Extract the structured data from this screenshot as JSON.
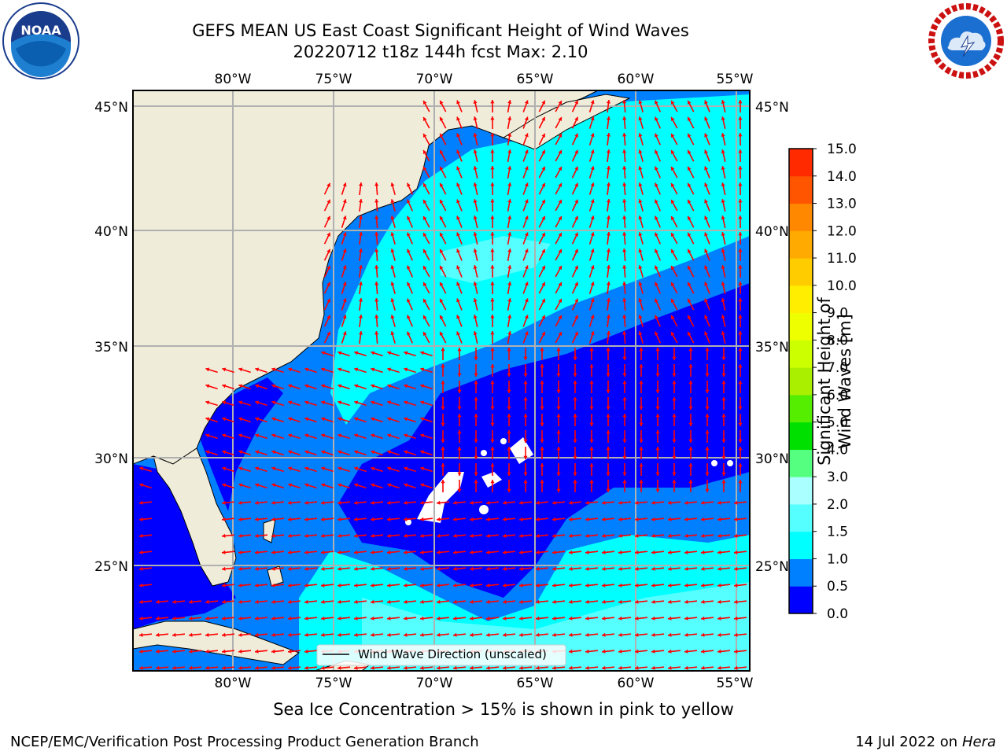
{
  "title": {
    "line1": "GEFS MEAN US East Coast Significant Height of Wind Waves",
    "line2": "20220712 t18z 144h fcst   Max: 2.10"
  },
  "logos": {
    "left": {
      "text": "NOAA",
      "ring_text": "NATIONAL OCEANIC AND ATMOSPHERIC ADMINISTRATION · U.S. DEPARTMENT OF COMMERCE",
      "icon": "noaa-logo"
    },
    "right": {
      "ring_text": "NATIONAL WEATHER SERVICE",
      "icon": "nws-logo"
    }
  },
  "map": {
    "longitude_ticks": [
      "80°W",
      "75°W",
      "70°W",
      "65°W",
      "60°W",
      "55°W"
    ],
    "latitude_ticks": [
      "45°N",
      "40°N",
      "35°N",
      "30°N",
      "25°N"
    ],
    "legend_label": "Wind Wave Direction (unscaled)",
    "land_color": "#efecda",
    "arrow_color": "#ff0000",
    "gridlines": true
  },
  "colorbar": {
    "title": "Significant Height of Wind Waves [m]",
    "ticks": [
      "0.0",
      "0.5",
      "1.0",
      "1.5",
      "2.0",
      "3.0",
      "4.0",
      "5.0",
      "6.0",
      "7.0",
      "8.0",
      "9.0",
      "10.0",
      "11.0",
      "12.0",
      "13.0",
      "14.0",
      "15.0"
    ],
    "colors": [
      "#0000ff",
      "#0080ff",
      "#00ffff",
      "#55ffff",
      "#aaffff",
      "#55ff80",
      "#00e000",
      "#55ee00",
      "#aaee00",
      "#ccff00",
      "#eeff00",
      "#ffee00",
      "#ffcc00",
      "#ffaa00",
      "#ff8800",
      "#ff5500",
      "#ff2a00",
      "#ff0000"
    ]
  },
  "caption": "Sea Ice Concentration > 15% is shown in pink to yellow",
  "footer": {
    "left": "NCEP/EMC/Verification Post Processing Product Generation Branch",
    "right_prefix": "14 Jul 2022 on ",
    "right_host": "Hera"
  }
}
